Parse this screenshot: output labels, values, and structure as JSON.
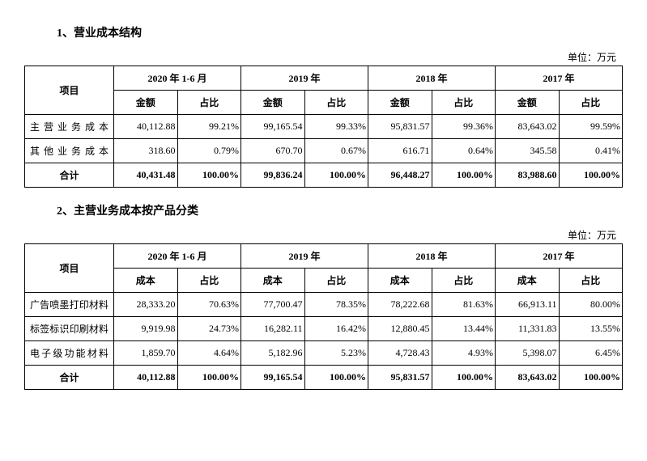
{
  "unit_label": "单位：万元",
  "section1": {
    "title": "1、营业成本结构",
    "table": {
      "item_header": "项目",
      "periods": [
        "2020 年 1-6 月",
        "2019 年",
        "2018 年",
        "2017 年"
      ],
      "sub_headers": {
        "amount": "金额",
        "ratio": "占比"
      },
      "rows": [
        {
          "item": "主营业务成本",
          "cells": [
            "40,112.88",
            "99.21%",
            "99,165.54",
            "99.33%",
            "95,831.57",
            "99.36%",
            "83,643.02",
            "99.59%"
          ]
        },
        {
          "item": "其他业务成本",
          "cells": [
            "318.60",
            "0.79%",
            "670.70",
            "0.67%",
            "616.71",
            "0.64%",
            "345.58",
            "0.41%"
          ]
        }
      ],
      "total": {
        "item": "合计",
        "cells": [
          "40,431.48",
          "100.00%",
          "99,836.24",
          "100.00%",
          "96,448.27",
          "100.00%",
          "83,988.60",
          "100.00%"
        ]
      }
    }
  },
  "section2": {
    "title": "2、主营业务成本按产品分类",
    "table": {
      "item_header": "项目",
      "periods": [
        "2020 年 1-6 月",
        "2019 年",
        "2018 年",
        "2017 年"
      ],
      "sub_headers": {
        "amount": "成本",
        "ratio": "占比"
      },
      "rows": [
        {
          "item": "广告喷墨打印材料",
          "cells": [
            "28,333.20",
            "70.63%",
            "77,700.47",
            "78.35%",
            "78,222.68",
            "81.63%",
            "66,913.11",
            "80.00%"
          ]
        },
        {
          "item": "标签标识印刷材料",
          "cells": [
            "9,919.98",
            "24.73%",
            "16,282.11",
            "16.42%",
            "12,880.45",
            "13.44%",
            "11,331.83",
            "13.55%"
          ]
        },
        {
          "item": "电子级功能材料",
          "cells": [
            "1,859.70",
            "4.64%",
            "5,182.96",
            "5.23%",
            "4,728.43",
            "4.93%",
            "5,398.07",
            "6.45%"
          ]
        }
      ],
      "total": {
        "item": "合计",
        "cells": [
          "40,112.88",
          "100.00%",
          "99,165.54",
          "100.00%",
          "95,831.57",
          "100.00%",
          "83,643.02",
          "100.00%"
        ]
      }
    }
  }
}
